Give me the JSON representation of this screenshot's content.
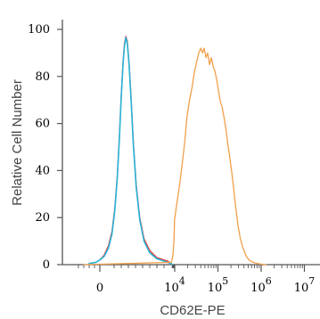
{
  "chart_data": {
    "type": "line",
    "title": "",
    "xlabel": "CD62E-PE",
    "ylabel": "Relative Cell Number",
    "x_scale": "biexponential",
    "xlim": [
      -1000,
      10000000
    ],
    "ylim": [
      0,
      100
    ],
    "grid": false,
    "legend": "none",
    "x_ticks": [
      {
        "value": 0,
        "label": "0"
      },
      {
        "value": 10000,
        "label": "10",
        "exp": "4"
      },
      {
        "value": 100000,
        "label": "10",
        "exp": "5"
      },
      {
        "value": 1000000,
        "label": "10",
        "exp": "6"
      },
      {
        "value": 10000000,
        "label": "10",
        "exp": "7"
      }
    ],
    "y_ticks": [
      0,
      20,
      40,
      60,
      80,
      100
    ],
    "series": [
      {
        "color": "#e8362f",
        "points": [
          [
            -400,
            0.5
          ],
          [
            -150,
            1
          ],
          [
            0,
            2
          ],
          [
            60,
            4
          ],
          [
            120,
            8
          ],
          [
            170,
            14
          ],
          [
            210,
            24
          ],
          [
            245,
            38
          ],
          [
            275,
            55
          ],
          [
            300,
            72
          ],
          [
            325,
            86
          ],
          [
            345,
            94
          ],
          [
            365,
            97
          ],
          [
            385,
            95
          ],
          [
            410,
            86
          ],
          [
            440,
            70
          ],
          [
            470,
            52
          ],
          [
            510,
            34
          ],
          [
            560,
            20
          ],
          [
            620,
            11
          ],
          [
            700,
            6
          ],
          [
            800,
            3
          ],
          [
            950,
            1.5
          ],
          [
            1200,
            0.5
          ],
          [
            1500,
            0
          ]
        ]
      },
      {
        "color": "#29b4d8",
        "points": [
          [
            -400,
            0.5
          ],
          [
            -150,
            1
          ],
          [
            0,
            2
          ],
          [
            60,
            3.5
          ],
          [
            120,
            7
          ],
          [
            170,
            13
          ],
          [
            210,
            23
          ],
          [
            245,
            37
          ],
          [
            275,
            54
          ],
          [
            300,
            71
          ],
          [
            325,
            85
          ],
          [
            345,
            93
          ],
          [
            365,
            96.5
          ],
          [
            385,
            94
          ],
          [
            410,
            85
          ],
          [
            440,
            69
          ],
          [
            470,
            51
          ],
          [
            510,
            33
          ],
          [
            560,
            19
          ],
          [
            620,
            10
          ],
          [
            700,
            5
          ],
          [
            800,
            2.5
          ],
          [
            950,
            1
          ],
          [
            1200,
            0.4
          ],
          [
            1500,
            0
          ]
        ]
      },
      {
        "color": "#f0a04b",
        "points": [
          [
            -600,
            0
          ],
          [
            0,
            0.2
          ],
          [
            400,
            0.5
          ],
          [
            1000,
            1
          ],
          [
            1800,
            2
          ],
          [
            2800,
            3.5
          ],
          [
            4000,
            6
          ],
          [
            5500,
            9
          ],
          [
            7000,
            13
          ],
          [
            9000,
            19
          ],
          [
            11000,
            25
          ],
          [
            13000,
            34
          ],
          [
            15000,
            43
          ],
          [
            17000,
            52
          ],
          [
            19000,
            62
          ],
          [
            22000,
            70
          ],
          [
            25000,
            75
          ],
          [
            28000,
            81
          ],
          [
            32000,
            86
          ],
          [
            36000,
            90
          ],
          [
            40000,
            92
          ],
          [
            44000,
            90
          ],
          [
            48000,
            92
          ],
          [
            53000,
            88
          ],
          [
            58000,
            90
          ],
          [
            64000,
            85
          ],
          [
            70000,
            88
          ],
          [
            78000,
            84
          ],
          [
            86000,
            82
          ],
          [
            95000,
            78
          ],
          [
            105000,
            73
          ],
          [
            115000,
            69
          ],
          [
            125000,
            67
          ],
          [
            140000,
            62
          ],
          [
            155000,
            57
          ],
          [
            170000,
            51
          ],
          [
            190000,
            45
          ],
          [
            210000,
            39
          ],
          [
            235000,
            31
          ],
          [
            260000,
            24
          ],
          [
            290000,
            17
          ],
          [
            330000,
            11
          ],
          [
            380000,
            7
          ],
          [
            440000,
            4
          ],
          [
            520000,
            2
          ],
          [
            650000,
            1
          ],
          [
            900000,
            0.3
          ],
          [
            1300000,
            0
          ]
        ]
      }
    ]
  }
}
